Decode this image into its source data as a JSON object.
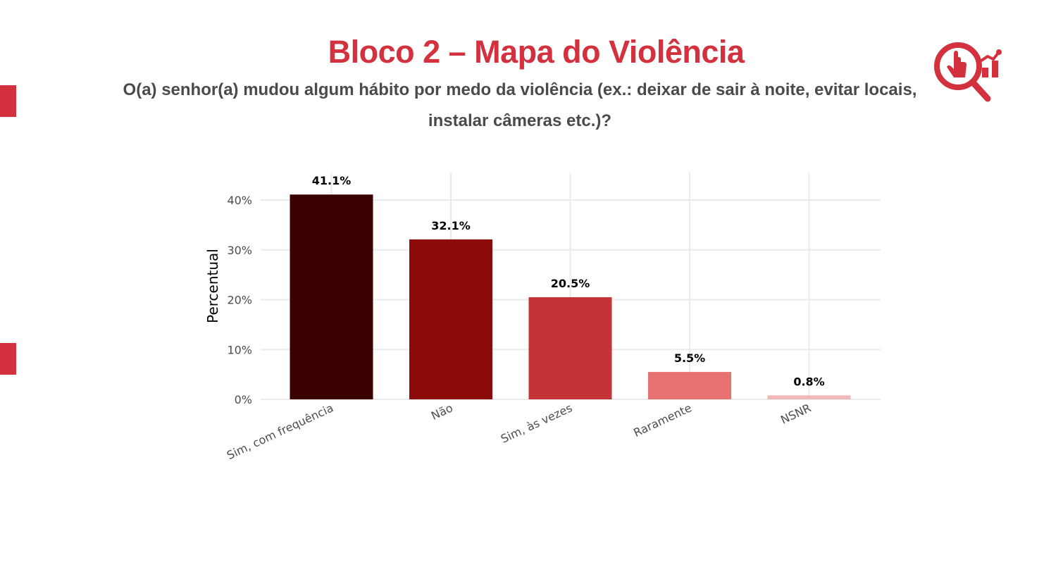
{
  "slide": {
    "title": "Bloco 2 – Mapa do Violência",
    "subtitle": "O(a) senhor(a) mudou algum hábito por medo da violência (ex.: deixar de sair à noite, evitar locais, instalar câmeras etc.)?",
    "logo_icon": "search-analytics-icon",
    "accent_color": "#d2313d"
  },
  "chart_data": {
    "type": "bar",
    "categories": [
      "Sim, com frequência",
      "Não",
      "Sim, às vezes",
      "Raramente",
      "NSNR"
    ],
    "values": [
      41.1,
      32.1,
      20.5,
      5.5,
      0.8
    ],
    "value_labels": [
      "41.1%",
      "32.1%",
      "20.5%",
      "5.5%",
      "0.8%"
    ],
    "colors": [
      "#3a0000",
      "#8b0a0a",
      "#c43335",
      "#e87272",
      "#f2b8b8"
    ],
    "ylabel": "Percentual",
    "xlabel": "",
    "ylim": [
      0,
      45
    ],
    "yticks": [
      0,
      10,
      20,
      30,
      40
    ],
    "ytick_labels": [
      "0%",
      "10%",
      "20%",
      "30%",
      "40%"
    ],
    "grid": true,
    "legend": "none"
  }
}
